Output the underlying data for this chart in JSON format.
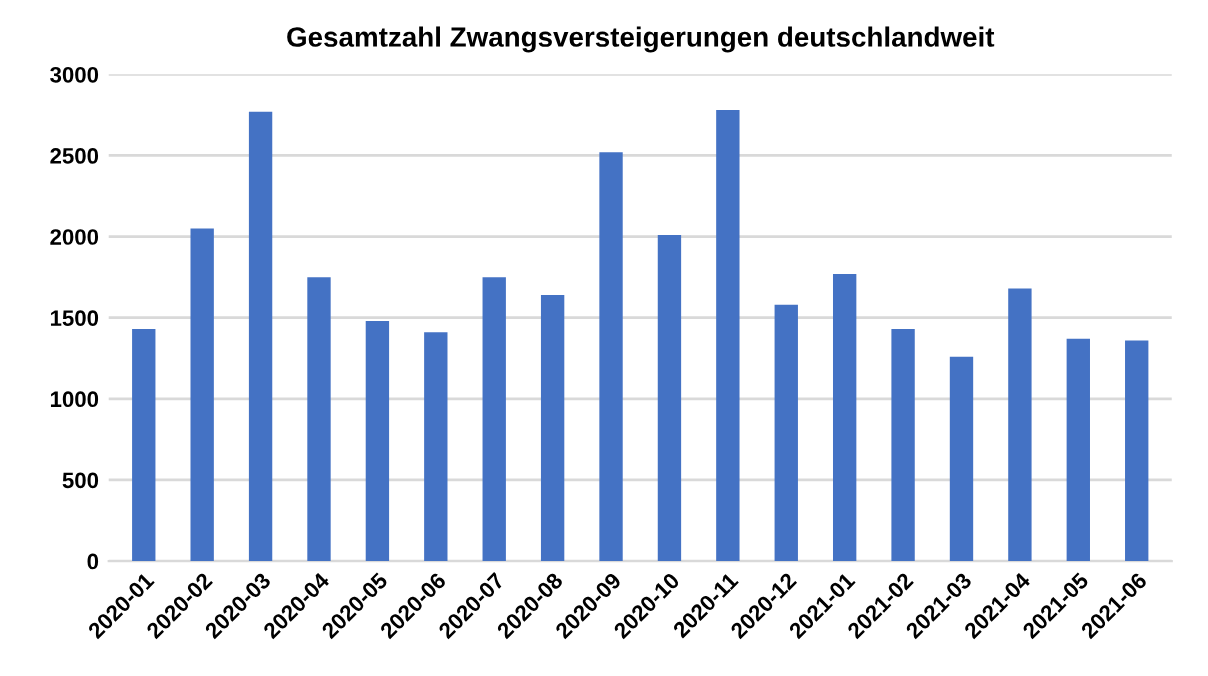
{
  "chart_data": {
    "type": "bar",
    "title": "Gesamtzahl Zwangsversteigerungen deutschlandweit",
    "categories": [
      "2020-01",
      "2020-02",
      "2020-03",
      "2020-04",
      "2020-05",
      "2020-06",
      "2020-07",
      "2020-08",
      "2020-09",
      "2020-10",
      "2020-11",
      "2020-12",
      "2021-01",
      "2021-02",
      "2021-03",
      "2021-04",
      "2021-05",
      "2021-06"
    ],
    "values": [
      1430,
      2050,
      2770,
      1750,
      1480,
      1410,
      1750,
      1640,
      2520,
      2010,
      2780,
      1580,
      1770,
      1430,
      1260,
      1680,
      1370,
      1360
    ],
    "color": "#4472c4",
    "ylim": [
      0,
      3000
    ],
    "yticks": [
      0,
      500,
      1000,
      1500,
      2000,
      2500,
      3000
    ],
    "grid": "y"
  }
}
